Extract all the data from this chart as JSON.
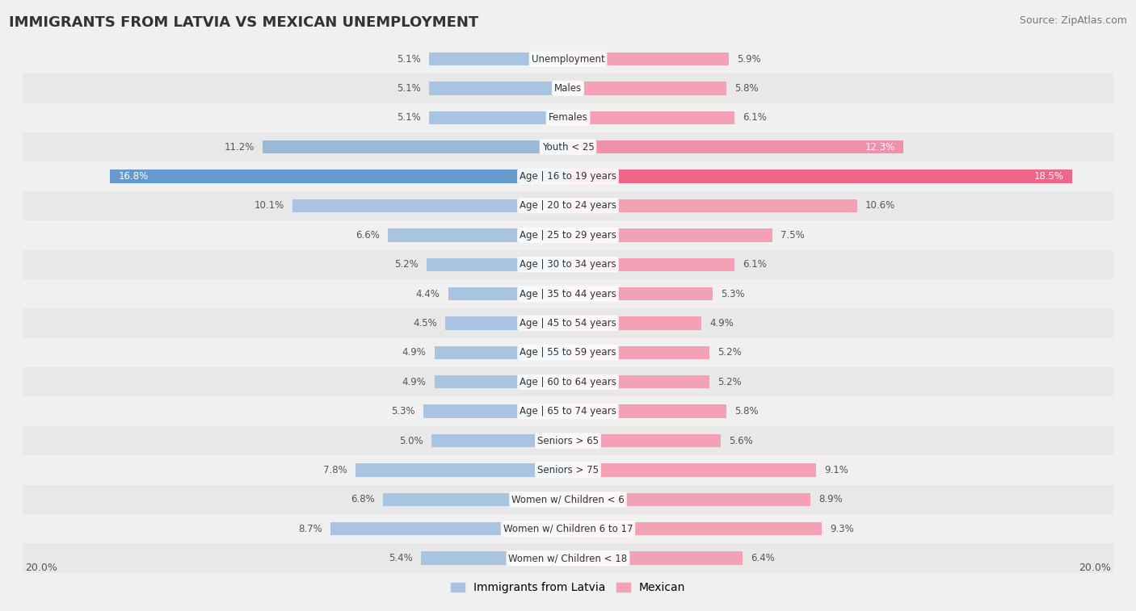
{
  "title": "IMMIGRANTS FROM LATVIA VS MEXICAN UNEMPLOYMENT",
  "source": "Source: ZipAtlas.com",
  "categories": [
    "Unemployment",
    "Males",
    "Females",
    "Youth < 25",
    "Age | 16 to 19 years",
    "Age | 20 to 24 years",
    "Age | 25 to 29 years",
    "Age | 30 to 34 years",
    "Age | 35 to 44 years",
    "Age | 45 to 54 years",
    "Age | 55 to 59 years",
    "Age | 60 to 64 years",
    "Age | 65 to 74 years",
    "Seniors > 65",
    "Seniors > 75",
    "Women w/ Children < 6",
    "Women w/ Children 6 to 17",
    "Women w/ Children < 18"
  ],
  "latvia_values": [
    5.1,
    5.1,
    5.1,
    11.2,
    16.8,
    10.1,
    6.6,
    5.2,
    4.4,
    4.5,
    4.9,
    4.9,
    5.3,
    5.0,
    7.8,
    6.8,
    8.7,
    5.4
  ],
  "mexican_values": [
    5.9,
    5.8,
    6.1,
    12.3,
    18.5,
    10.6,
    7.5,
    6.1,
    5.3,
    4.9,
    5.2,
    5.2,
    5.8,
    5.6,
    9.1,
    8.9,
    9.3,
    6.4
  ],
  "latvia_color": "#a8c4e0",
  "mexican_color": "#f4a0b5",
  "highlight_latvia_color": "#6699cc",
  "highlight_mexican_color": "#ee6688",
  "youth_latvia_color": "#9ab8d8",
  "youth_mexican_color": "#f090aa",
  "label_color": "#555555",
  "bg_color": "#f0f0f0",
  "row_bg_even": "#f0f0f0",
  "row_bg_odd": "#e8e8e8",
  "xlim": 20.0,
  "bar_height": 0.45,
  "legend_labels": [
    "Immigrants from Latvia",
    "Mexican"
  ]
}
